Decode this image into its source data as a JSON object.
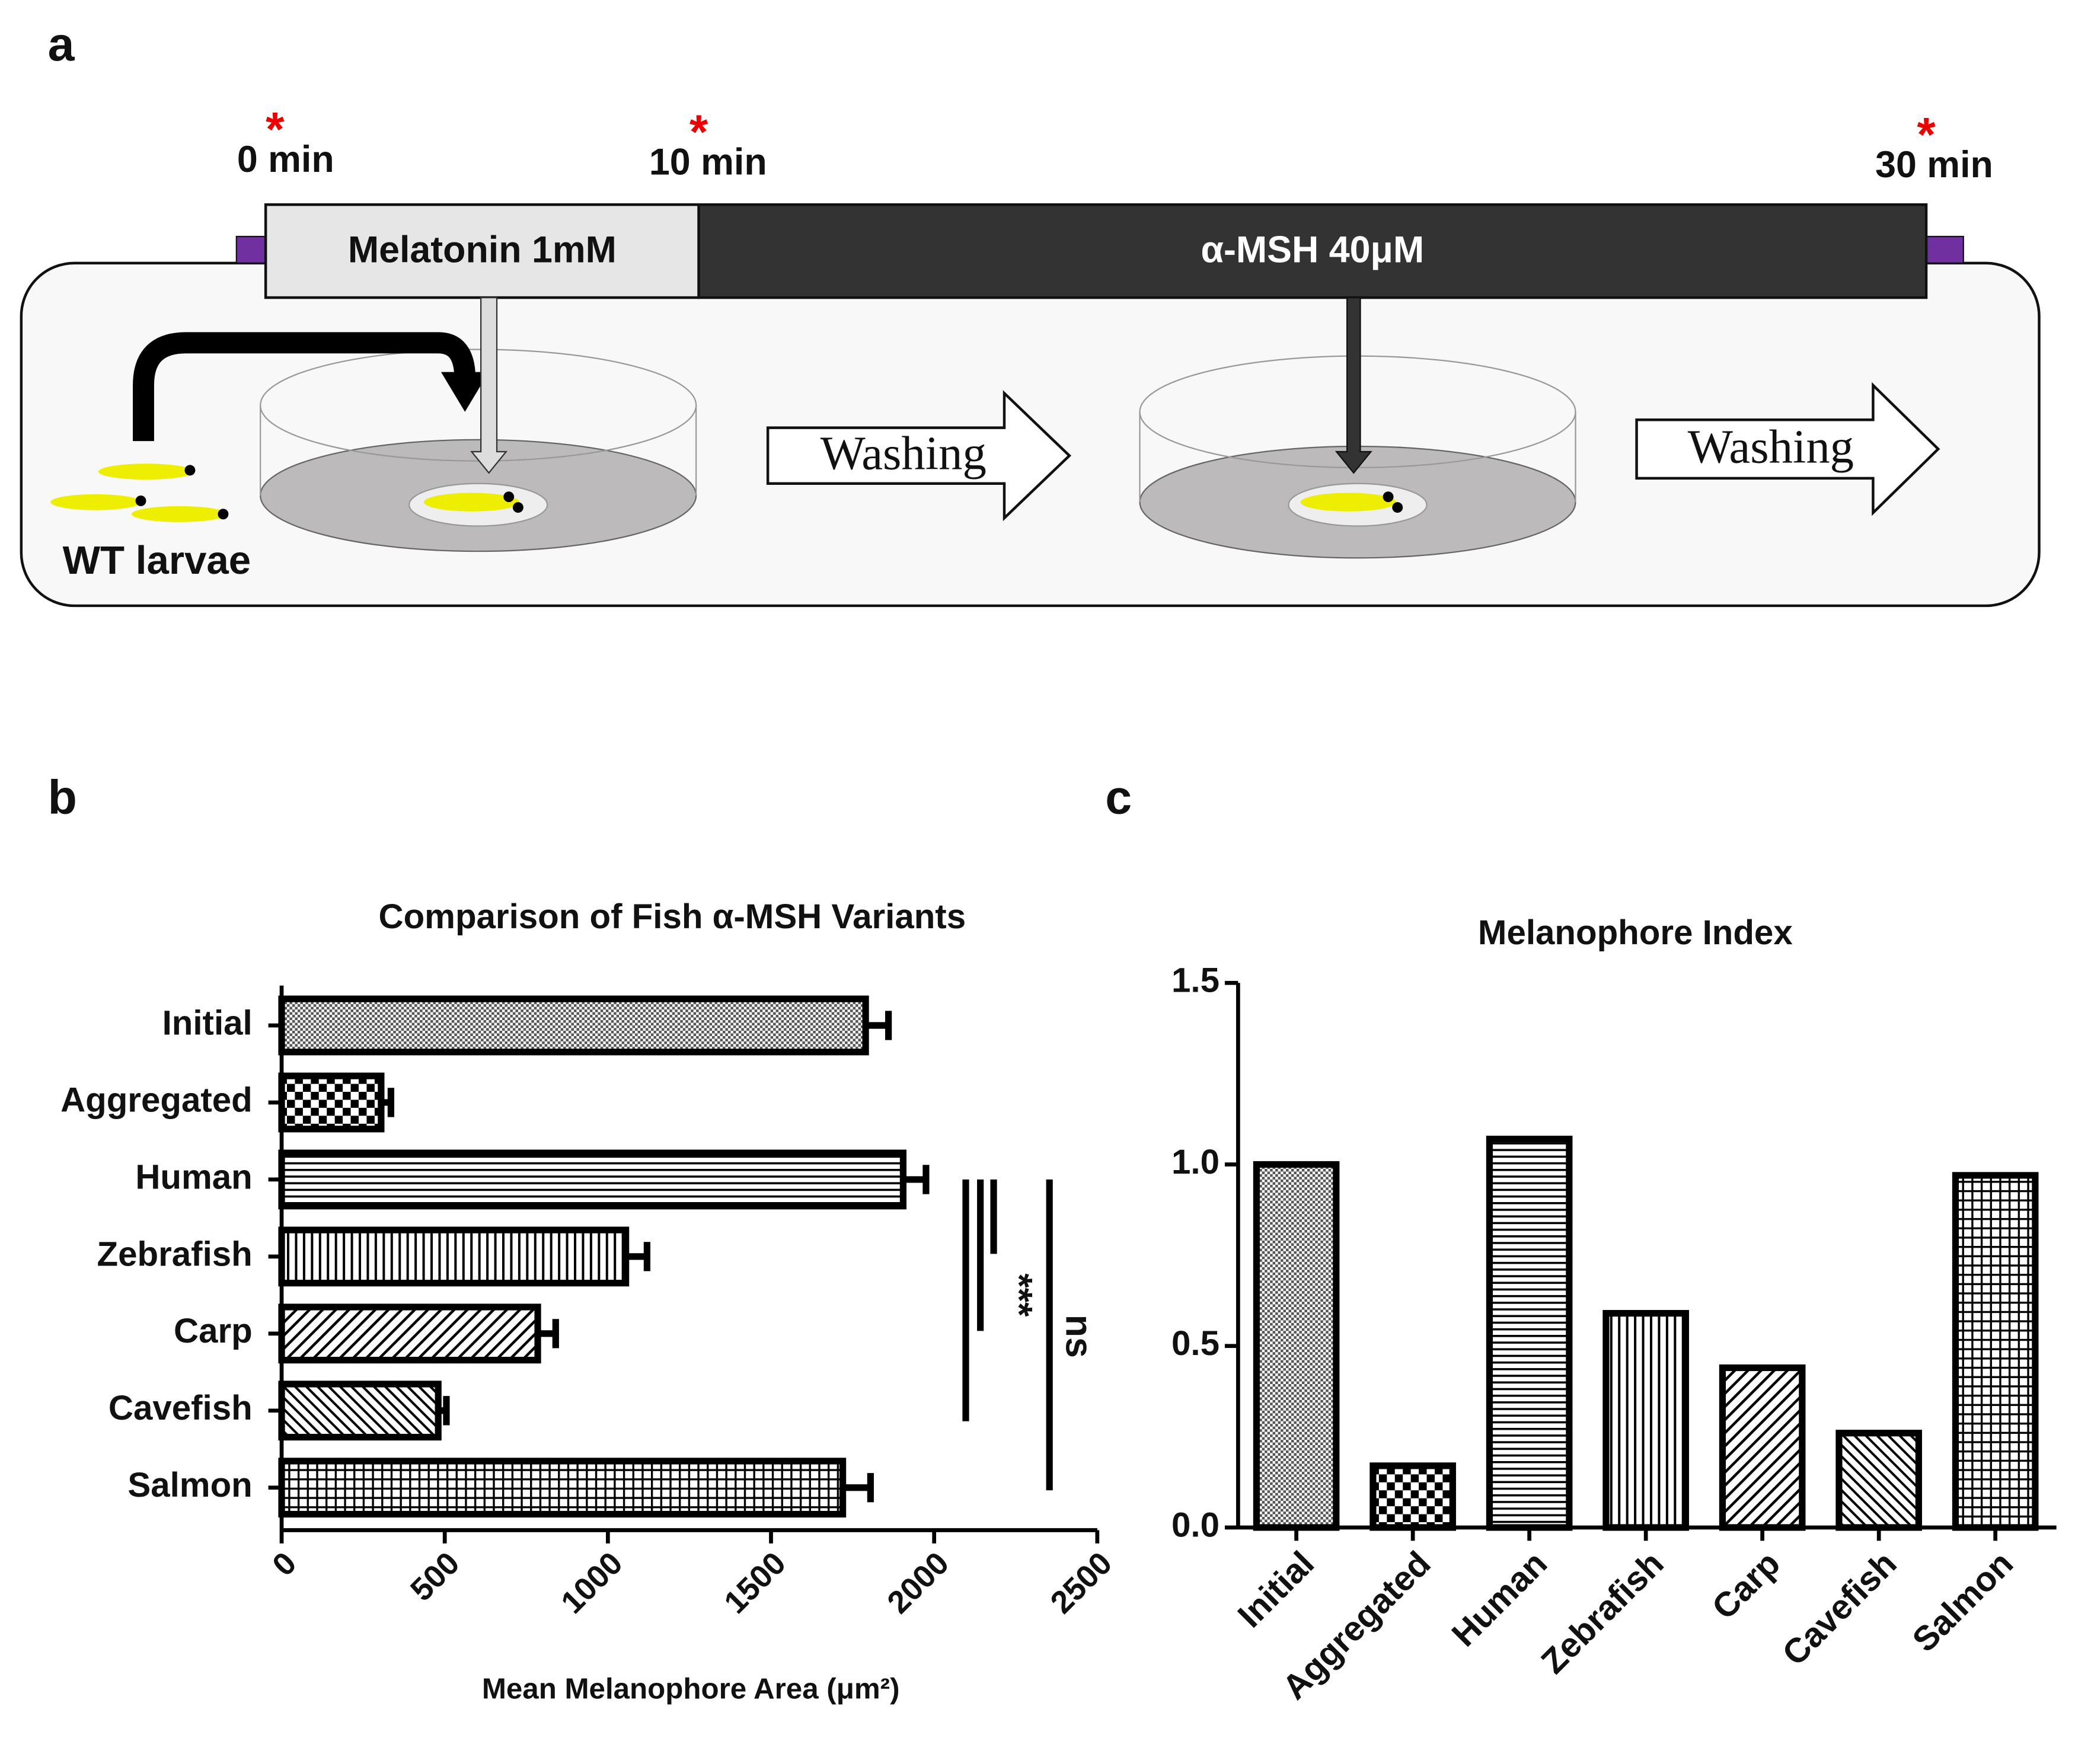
{
  "panel_labels": [
    "a",
    "b",
    "c"
  ],
  "diagram": {
    "timepoints": [
      "0 min",
      "10 min",
      "30 min"
    ],
    "timepoint_marker": "*",
    "treatments": [
      "Melatonin 1mM",
      "α-MSH 40μM"
    ],
    "steps": [
      "Washing",
      "Washing"
    ],
    "subject": "WT larvae"
  },
  "chart_data": [
    {
      "type": "bar",
      "orientation": "horizontal",
      "title": "Comparison of Fish α-MSH Variants",
      "x_label": "Mean Melanophore Area (μm²)",
      "categories": [
        "Initial",
        "Aggregated",
        "Human",
        "Zebrafish",
        "Carp",
        "Cavefish",
        "Salmon"
      ],
      "values": [
        1790,
        305,
        1905,
        1055,
        785,
        480,
        1720
      ],
      "errors": [
        70,
        30,
        70,
        65,
        55,
        25,
        85
      ],
      "patterns": [
        "dots",
        "checker",
        "hlines",
        "vlines",
        "diag",
        "diag2",
        "grid"
      ],
      "color": "#000000",
      "xlim": [
        0,
        2500
      ],
      "xticks": [
        0,
        500,
        1000,
        1500,
        2000,
        2500
      ],
      "annotations": [
        "***",
        "ns"
      ]
    },
    {
      "type": "bar",
      "title": "Melanophore Index",
      "categories": [
        "Initial",
        "Aggregated",
        "Human",
        "Zebrafish",
        "Carp",
        "Cavefish",
        "Salmon"
      ],
      "values": [
        1.0,
        0.17,
        1.07,
        0.59,
        0.44,
        0.26,
        0.97
      ],
      "patterns": [
        "dots",
        "checker",
        "hlines",
        "vlines",
        "diag",
        "diag2",
        "grid"
      ],
      "color": "#000000",
      "ylim": [
        0,
        1.5
      ],
      "yticks": [
        {
          "value": 0,
          "label": "0.0"
        },
        {
          "value": 0.5,
          "label": "0.5"
        },
        {
          "value": 1,
          "label": "1.0"
        },
        {
          "value": 1.5,
          "label": "1.5"
        }
      ]
    }
  ]
}
